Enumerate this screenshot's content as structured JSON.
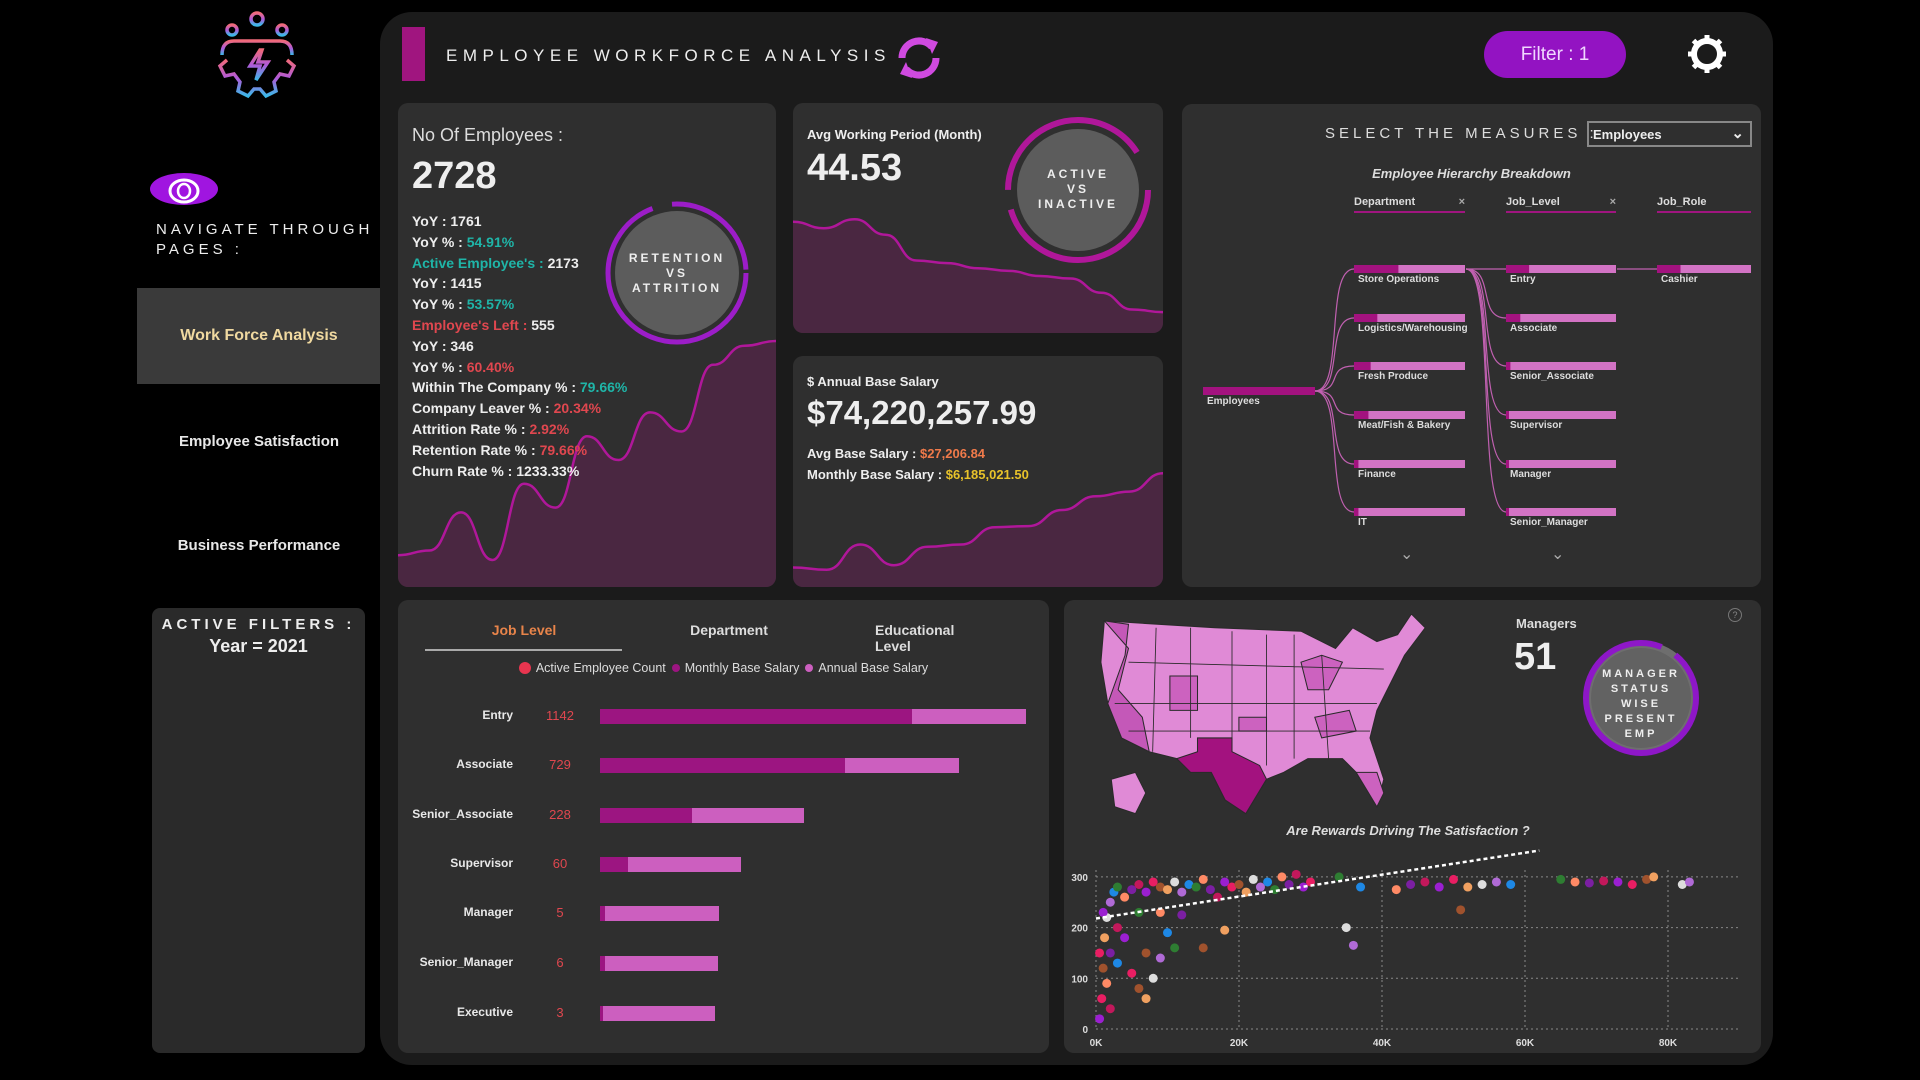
{
  "header": {
    "title": "EMPLOYEE WORKFORCE ANALYSIS",
    "filter_button": "Filter : 1",
    "refresh_icon": "refresh-icon",
    "settings_icon": "gear-icon"
  },
  "sidebar": {
    "navigate_label": "NAVIGATE THROUGH PAGES :",
    "items": [
      {
        "label": "Work Force Analysis",
        "active": true
      },
      {
        "label": "Employee Satisfaction"
      },
      {
        "label": "Business Performance"
      }
    ],
    "active_filters_title": "ACTIVE FILTERS :",
    "active_filter_value": "Year = 2021"
  },
  "employees_card": {
    "title": "No Of Employees :",
    "value": "2728",
    "ring_label": [
      "RETENTION",
      "VS",
      "ATTRITION"
    ],
    "stats": [
      {
        "label": "YoY : ",
        "value": "1761",
        "lc": "#eee",
        "vc": "#eee"
      },
      {
        "label": "YoY % : ",
        "value": "54.91%",
        "lc": "#eee",
        "vc": "#1fb5a8"
      },
      {
        "label": "Active Employee's : ",
        "value": "2173",
        "lc": "#1fb5a8",
        "vc": "#eee"
      },
      {
        "label": "YoY : ",
        "value": "1415",
        "lc": "#eee",
        "vc": "#eee"
      },
      {
        "label": "YoY % : ",
        "value": "53.57%",
        "lc": "#eee",
        "vc": "#1fb5a8"
      },
      {
        "label": "Employee's Left : ",
        "value": "555",
        "lc": "#e0474f",
        "vc": "#eee"
      },
      {
        "label": "YoY : ",
        "value": "346",
        "lc": "#eee",
        "vc": "#eee"
      },
      {
        "label": "YoY % : ",
        "value": "60.40%",
        "lc": "#eee",
        "vc": "#e0474f"
      },
      {
        "label": "Within The Company % : ",
        "value": "79.66%",
        "lc": "#eee",
        "vc": "#1fb5a8"
      },
      {
        "label": "Company Leaver % : ",
        "value": "20.34%",
        "lc": "#eee",
        "vc": "#e0474f"
      },
      {
        "label": "Attrition Rate % : ",
        "value": "2.92%",
        "lc": "#eee",
        "vc": "#e0474f"
      },
      {
        "label": "Retention Rate % : ",
        "value": "79.66%",
        "lc": "#eee",
        "vc": "#e0474f"
      },
      {
        "label": "Churn Rate % : ",
        "value": "1233.33%",
        "lc": "#eee",
        "vc": "#eee"
      }
    ],
    "trend": [
      10,
      12,
      28,
      8,
      40,
      30,
      60,
      50,
      70,
      62,
      90,
      98,
      100
    ]
  },
  "working_card": {
    "title": "Avg Working Period (Month)",
    "value": "44.53",
    "ring_label": [
      "ACTIVE",
      "VS",
      "INACTIVE"
    ],
    "trend": [
      80,
      75,
      82,
      70,
      50,
      48,
      44,
      42,
      38,
      36,
      25,
      12,
      10
    ]
  },
  "salary_card": {
    "title": "$ Annual Base Salary",
    "value": "$74,220,257.99",
    "avg_label": "Avg Base Salary : ",
    "avg_value": "$27,206.84",
    "monthly_label": "Monthly Base Salary : ",
    "monthly_value": "$6,185,021.50",
    "trend": [
      10,
      8,
      30,
      12,
      28,
      30,
      45,
      46,
      60,
      72,
      76,
      92
    ]
  },
  "hierarchy": {
    "measures_label": "SELECT THE MEASURES :",
    "measure_selected": "Employees",
    "title": "Employee Hierarchy Breakdown",
    "columns": [
      "Department",
      "Job_Level",
      "Job_Role"
    ],
    "root": "Employees",
    "departments": [
      {
        "name": "Store Operations",
        "share": 0.4
      },
      {
        "name": "Logistics/Warehousing",
        "share": 0.21
      },
      {
        "name": "Fresh Produce",
        "share": 0.15
      },
      {
        "name": "Meat/Fish & Bakery",
        "share": 0.13
      },
      {
        "name": "Finance",
        "share": 0.04
      },
      {
        "name": "IT",
        "share": 0.04
      }
    ],
    "job_levels": [
      {
        "name": "Entry",
        "share": 0.21
      },
      {
        "name": "Associate",
        "share": 0.13
      },
      {
        "name": "Senior_Associate",
        "share": 0.04
      },
      {
        "name": "Supervisor",
        "share": 0.02
      },
      {
        "name": "Manager",
        "share": 0.01
      },
      {
        "name": "Senior_Manager",
        "share": 0.01
      }
    ],
    "job_roles": [
      {
        "name": "Cashier",
        "share": 0.25
      }
    ]
  },
  "joblevel_panel": {
    "tabs": [
      "Job Level",
      "Department",
      "Educational Level"
    ],
    "legend": [
      {
        "label": "Active Employee Count",
        "color": "#e8354f"
      },
      {
        "label": "Monthly Base Salary",
        "color": "#9c1581"
      },
      {
        "label": "Annual Base Salary",
        "color": "#cc5fbf"
      }
    ]
  },
  "map_panel": {
    "managers_label": "Managers",
    "managers_value": "51",
    "ring_label": [
      "MANAGER",
      "STATUS",
      "WISE",
      "PRESENT",
      "EMP"
    ],
    "help_icon": "?"
  },
  "chart_data": [
    {
      "type": "bar",
      "title": "Job Level",
      "categories": [
        "Entry",
        "Associate",
        "Senior_Associate",
        "Supervisor",
        "Manager",
        "Senior_Manager",
        "Executive"
      ],
      "series": [
        {
          "name": "Active Employee Count",
          "values": [
            1142,
            729,
            228,
            60,
            5,
            6,
            3
          ]
        },
        {
          "name": "Monthly Base Salary (relative)",
          "values": [
            0.733,
            0.575,
            0.216,
            0.066,
            0.011,
            0.011,
            0.006
          ]
        },
        {
          "name": "Annual Base Salary (relative total)",
          "values": [
            1.0,
            0.842,
            0.48,
            0.33,
            0.279,
            0.276,
            0.27
          ]
        }
      ]
    },
    {
      "type": "scatter",
      "title": "Are Rewards Driving The Satisfaction ?",
      "xlim": [
        0,
        90000
      ],
      "ylim": [
        0,
        350
      ],
      "x_ticks": [
        "0K",
        "20K",
        "40K",
        "60K",
        "80K"
      ],
      "y_ticks": [
        "0",
        "100",
        "200",
        "300"
      ],
      "trendline": [
        [
          0,
          218
        ],
        [
          62000,
          352
        ]
      ],
      "points": [
        [
          500,
          20
        ],
        [
          800,
          60
        ],
        [
          1000,
          120
        ],
        [
          1200,
          180
        ],
        [
          1500,
          220
        ],
        [
          2000,
          250
        ],
        [
          2500,
          270
        ],
        [
          3000,
          280
        ],
        [
          1500,
          90
        ],
        [
          2000,
          150
        ],
        [
          3000,
          200
        ],
        [
          4000,
          180
        ],
        [
          5000,
          110
        ],
        [
          6000,
          80
        ],
        [
          7000,
          60
        ],
        [
          8000,
          100
        ],
        [
          9000,
          140
        ],
        [
          10000,
          190
        ],
        [
          11000,
          160
        ],
        [
          4000,
          260
        ],
        [
          5000,
          275
        ],
        [
          6000,
          285
        ],
        [
          7000,
          270
        ],
        [
          8000,
          290
        ],
        [
          9000,
          280
        ],
        [
          10000,
          275
        ],
        [
          11000,
          290
        ],
        [
          12000,
          270
        ],
        [
          13000,
          285
        ],
        [
          14000,
          280
        ],
        [
          15000,
          295
        ],
        [
          16000,
          275
        ],
        [
          17000,
          260
        ],
        [
          18000,
          290
        ],
        [
          19000,
          280
        ],
        [
          20000,
          285
        ],
        [
          21000,
          270
        ],
        [
          22000,
          295
        ],
        [
          23000,
          280
        ],
        [
          24000,
          290
        ],
        [
          25000,
          275
        ],
        [
          26000,
          300
        ],
        [
          27000,
          285
        ],
        [
          28000,
          305
        ],
        [
          29000,
          280
        ],
        [
          30000,
          290
        ],
        [
          15000,
          160
        ],
        [
          18000,
          195
        ],
        [
          35000,
          200
        ],
        [
          36000,
          165
        ],
        [
          37000,
          280
        ],
        [
          34000,
          300
        ],
        [
          42000,
          275
        ],
        [
          44000,
          285
        ],
        [
          46000,
          290
        ],
        [
          48000,
          280
        ],
        [
          50000,
          295
        ],
        [
          51000,
          235
        ],
        [
          52000,
          280
        ],
        [
          54000,
          285
        ],
        [
          56000,
          290
        ],
        [
          58000,
          285
        ],
        [
          65000,
          295
        ],
        [
          67000,
          290
        ],
        [
          69000,
          288
        ],
        [
          71000,
          292
        ],
        [
          73000,
          290
        ],
        [
          75000,
          285
        ],
        [
          77000,
          295
        ],
        [
          78000,
          300
        ],
        [
          82000,
          285
        ],
        [
          83000,
          290
        ],
        [
          3000,
          130
        ],
        [
          6000,
          230
        ],
        [
          9000,
          230
        ],
        [
          12000,
          225
        ],
        [
          2000,
          40
        ],
        [
          1000,
          230
        ],
        [
          500,
          150
        ],
        [
          7000,
          150
        ]
      ],
      "colors": [
        "#9b1fd1",
        "#e91e63",
        "#a0522d",
        "#f0a060",
        "#dddddd",
        "#b06ad6",
        "#1e88e5",
        "#2e7d32",
        "#ff8a65",
        "#7b1fa2",
        "#c2185b"
      ]
    }
  ]
}
